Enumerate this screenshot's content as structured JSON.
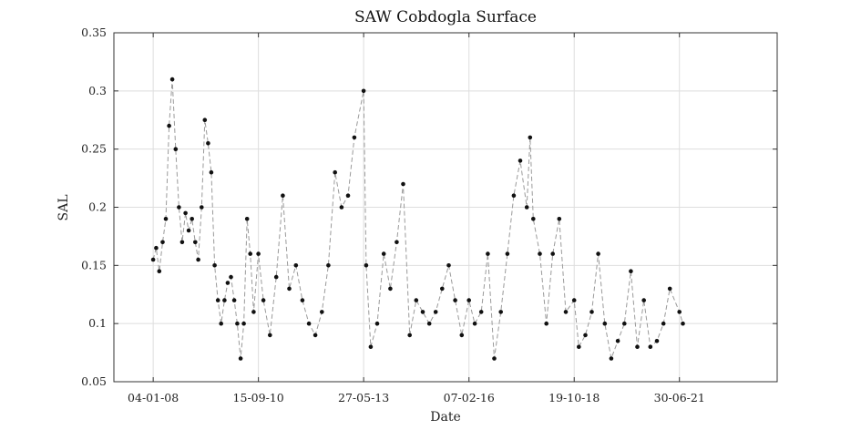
{
  "chart_data": {
    "type": "line",
    "title": "SAW Cobdogla Surface",
    "xlabel": "Date",
    "ylabel": "SAL",
    "ylim": [
      0.05,
      0.35
    ],
    "yticks": [
      0.05,
      0.1,
      0.15,
      0.2,
      0.25,
      0.3,
      0.35
    ],
    "ytick_labels": [
      "0.05",
      "0.1",
      "0.15",
      "0.2",
      "0.25",
      "0.3",
      "0.35"
    ],
    "xlim": [
      "2007-01-01",
      "2024-01-01"
    ],
    "xticks": [
      "2008-01-04",
      "2010-09-15",
      "2013-05-27",
      "2016-02-07",
      "2018-10-19",
      "2021-06-30"
    ],
    "xtick_labels": [
      "04-01-08",
      "15-09-10",
      "27-05-13",
      "07-02-16",
      "19-10-18",
      "30-06-21"
    ],
    "grid": true,
    "marker": "filled circle",
    "line_style": "dashed",
    "colors": {
      "marker": "#111111",
      "line": "#9a9a9a",
      "grid": "#dedede",
      "frame": "#333333"
    },
    "series": [
      {
        "x": [
          "2008-01-04",
          "2008-02-01",
          "2008-03-01",
          "2008-04-01",
          "2008-05-01",
          "2008-06-01",
          "2008-07-01",
          "2008-08-01",
          "2008-09-01",
          "2008-10-01",
          "2008-11-01",
          "2008-12-01",
          "2009-01-01",
          "2009-02-01",
          "2009-03-01",
          "2009-04-01",
          "2009-05-01",
          "2009-06-01",
          "2009-07-01",
          "2009-08-01",
          "2009-09-01",
          "2009-10-01",
          "2009-11-01",
          "2009-12-01",
          "2010-01-01",
          "2010-02-01",
          "2010-03-01",
          "2010-04-01",
          "2010-05-01",
          "2010-06-01",
          "2010-07-01",
          "2010-08-01",
          "2010-09-15",
          "2010-11-01",
          "2011-01-01",
          "2011-03-01",
          "2011-05-01",
          "2011-07-01",
          "2011-09-01",
          "2011-11-01",
          "2012-01-01",
          "2012-03-01",
          "2012-05-01",
          "2012-07-01",
          "2012-09-01",
          "2012-11-01",
          "2013-01-01",
          "2013-03-01",
          "2013-05-27",
          "2013-06-20",
          "2013-08-01",
          "2013-10-01",
          "2013-12-01",
          "2014-02-01",
          "2014-04-01",
          "2014-06-01",
          "2014-08-01",
          "2014-10-01",
          "2014-12-01",
          "2015-02-01",
          "2015-04-01",
          "2015-06-01",
          "2015-08-01",
          "2015-10-01",
          "2015-12-01",
          "2016-02-07",
          "2016-04-01",
          "2016-06-01",
          "2016-08-01",
          "2016-10-01",
          "2016-12-01",
          "2017-02-01",
          "2017-04-01",
          "2017-06-01",
          "2017-08-01",
          "2017-09-01",
          "2017-10-01",
          "2017-12-01",
          "2018-02-01",
          "2018-04-01",
          "2018-06-01",
          "2018-08-01",
          "2018-10-19",
          "2018-12-01",
          "2019-02-01",
          "2019-04-01",
          "2019-06-01",
          "2019-08-01",
          "2019-10-01",
          "2019-12-01",
          "2020-02-01",
          "2020-04-01",
          "2020-06-01",
          "2020-08-01",
          "2020-10-01",
          "2020-12-01",
          "2021-02-01",
          "2021-04-01",
          "2021-06-30",
          "2021-08-01"
        ],
        "y": [
          0.155,
          0.165,
          0.145,
          0.17,
          0.19,
          0.27,
          0.31,
          0.25,
          0.2,
          0.17,
          0.195,
          0.18,
          0.19,
          0.17,
          0.155,
          0.2,
          0.275,
          0.255,
          0.23,
          0.15,
          0.12,
          0.1,
          0.12,
          0.135,
          0.14,
          0.12,
          0.1,
          0.07,
          0.1,
          0.19,
          0.16,
          0.11,
          0.16,
          0.12,
          0.09,
          0.14,
          0.21,
          0.13,
          0.15,
          0.12,
          0.1,
          0.09,
          0.11,
          0.15,
          0.23,
          0.2,
          0.21,
          0.26,
          0.3,
          0.15,
          0.08,
          0.1,
          0.16,
          0.13,
          0.17,
          0.22,
          0.09,
          0.12,
          0.11,
          0.1,
          0.11,
          0.13,
          0.15,
          0.12,
          0.09,
          0.12,
          0.1,
          0.11,
          0.16,
          0.07,
          0.11,
          0.16,
          0.21,
          0.24,
          0.2,
          0.26,
          0.19,
          0.16,
          0.1,
          0.16,
          0.19,
          0.11,
          0.12,
          0.08,
          0.09,
          0.11,
          0.16,
          0.1,
          0.07,
          0.085,
          0.1,
          0.145,
          0.08,
          0.12,
          0.08,
          0.085,
          0.1,
          0.13,
          0.11,
          0.1
        ]
      }
    ]
  }
}
